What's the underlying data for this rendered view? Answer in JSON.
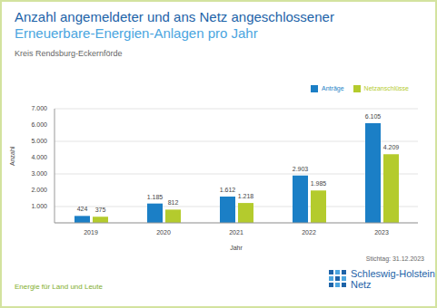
{
  "chart_data": {
    "type": "bar",
    "title": "Anzahl angemeldeter und ans Netz angeschlossener",
    "subtitle": "Erneuerbare-Energien-Anlagen pro Jahr",
    "annotations": [
      "Kreis Rendsburg-Eckernförde",
      "Stichtag: 31.12.2023",
      "Energie für Land und Leute",
      "Schleswig-Holstein",
      "Netz"
    ],
    "x_label": "Jahr",
    "y_label": "Anzahl",
    "categories": [
      "2019",
      "2020",
      "2021",
      "2022",
      "2023"
    ],
    "series": [
      {
        "name": "Anträge",
        "color": "#1b7fc6",
        "values": [
          424,
          1185,
          1612,
          2903,
          6105
        ],
        "value_labels": [
          "424",
          "1.185",
          "1.612",
          "2.903",
          "6.105"
        ]
      },
      {
        "name": "Netzanschlüsse",
        "color": "#b4cb2d",
        "values": [
          375,
          812,
          1218,
          1985,
          4209
        ],
        "value_labels": [
          "375",
          "812",
          "1.218",
          "1.985",
          "4.209"
        ]
      }
    ],
    "ylim": [
      0,
      7000
    ],
    "yticks": [
      {
        "value": 1000,
        "label": "1.000"
      },
      {
        "value": 2000,
        "label": "2.000"
      },
      {
        "value": 3000,
        "label": "3.000"
      },
      {
        "value": 4000,
        "label": "4.000"
      },
      {
        "value": 5000,
        "label": "5.000"
      },
      {
        "value": 6000,
        "label": "6.000"
      },
      {
        "value": 7000,
        "label": "7.000"
      }
    ],
    "grid": true,
    "legend": "top-right",
    "data_labels": true
  }
}
